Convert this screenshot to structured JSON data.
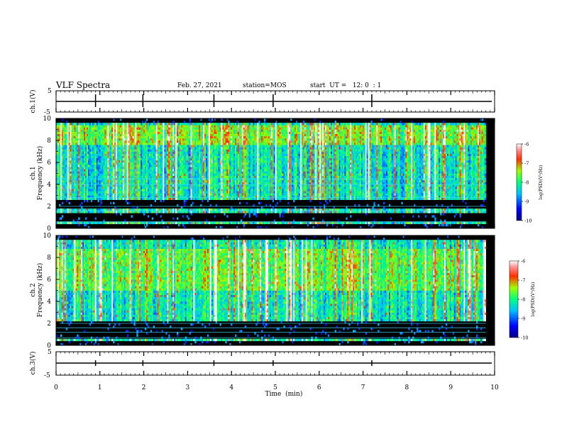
{
  "header": {
    "title": "VLF Spectra",
    "date": "Feb. 27, 2021",
    "station": "station=MOS",
    "start": "start  UT =   12: 0  : 1"
  },
  "colors": {
    "background": "#ffffff",
    "axis": "#000000",
    "spectrogram_floor": "#000000"
  },
  "chart_data": [
    {
      "type": "line",
      "panel": "ch1-waveform",
      "ylabel": "ch.1(V)",
      "ylim": [
        -5,
        5
      ],
      "yticks": [
        "5",
        "-5"
      ],
      "xlim": [
        0,
        10
      ],
      "series": [
        {
          "values_description": "flat",
          "x": [
            0,
            9.8
          ],
          "y": [
            0,
            0
          ]
        }
      ]
    },
    {
      "type": "heatmap",
      "panel": "ch1-spectrogram",
      "ylabel": "ch.1\nFrequency (kHz)",
      "ylim": [
        0,
        10
      ],
      "yticks": [
        "0",
        "2",
        "4",
        "6",
        "8",
        "10"
      ],
      "xlim": [
        0,
        9.8
      ],
      "colorbar": {
        "title": "log(PSD)(V²/Hz)",
        "ticks": [
          "-6",
          "-7",
          "-8",
          "-9",
          "-10"
        ],
        "range": [
          -10,
          -6
        ]
      },
      "dark_bands_khz": [
        [
          0.0,
          0.3
        ],
        [
          0.7,
          1.4
        ],
        [
          1.8,
          2.6
        ],
        [
          9.6,
          10.0
        ]
      ],
      "horizontal_lines_khz": [
        0.6,
        1.6,
        2.0,
        2.8,
        4.0,
        4.5
      ]
    },
    {
      "type": "heatmap",
      "panel": "ch2-spectrogram",
      "ylabel": "ch.2\nFrequency (kHz)",
      "ylim": [
        0,
        10
      ],
      "yticks": [
        "0",
        "2",
        "4",
        "6",
        "8",
        "10"
      ],
      "xlim": [
        0,
        9.8
      ],
      "colorbar": {
        "title": "log(PSD)(V²/Hz)",
        "ticks": [
          "-6",
          "-7",
          "-8",
          "-9",
          "-10"
        ],
        "range": [
          -10,
          -6
        ]
      },
      "dark_bands_khz": [
        [
          0.0,
          0.4
        ],
        [
          0.6,
          2.2
        ],
        [
          9.6,
          10.0
        ]
      ],
      "horizontal_lines_khz": [
        0.7,
        1.2,
        1.6,
        2.0
      ]
    },
    {
      "type": "line",
      "panel": "ch3-waveform",
      "ylabel": "ch.3(V)",
      "ylim": [
        -5,
        5
      ],
      "yticks": [
        "5",
        "-5"
      ],
      "xlim": [
        0,
        10
      ],
      "series": [
        {
          "x": [
            0,
            9.8
          ],
          "y": [
            0,
            0
          ]
        }
      ]
    }
  ],
  "x_axis": {
    "title": "Time  (min)",
    "ticks": [
      "0",
      "1",
      "2",
      "3",
      "4",
      "5",
      "6",
      "7",
      "8",
      "9",
      "10"
    ],
    "range": [
      0,
      10
    ]
  }
}
